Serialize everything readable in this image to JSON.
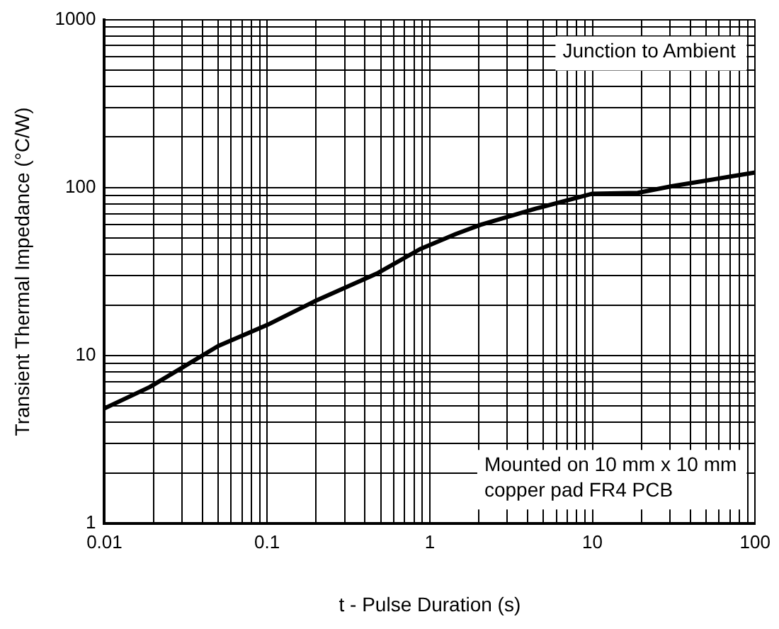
{
  "chart_data": {
    "type": "line",
    "xlabel": "t - Pulse Duration (s)",
    "ylabel": "Transient Thermal Impedance (°C/W)",
    "annotations": [
      "Junction to Ambient",
      "Mounted on 10 mm x 10 mm\ncopper pad FR4 PCB"
    ],
    "log": "xy",
    "grid": true,
    "marker": "none",
    "line_style": "solid",
    "xlim": [
      0.01,
      100
    ],
    "ylim": [
      1,
      1000
    ],
    "xticks": [
      0.01,
      {
        "value": 0.02,
        "label": null
      },
      {
        "value": 0.03,
        "label": null
      },
      {
        "value": 0.04,
        "label": null
      },
      {
        "value": 0.05,
        "label": null
      },
      {
        "value": 0.06,
        "label": null
      },
      {
        "value": 0.07,
        "label": null
      },
      {
        "value": 0.08,
        "label": null
      },
      {
        "value": 0.09,
        "label": null
      },
      0.1,
      {
        "value": 0.2,
        "label": null
      },
      {
        "value": 0.3,
        "label": null
      },
      {
        "value": 0.4,
        "label": null
      },
      {
        "value": 0.5,
        "label": null
      },
      {
        "value": 0.6,
        "label": null
      },
      {
        "value": 0.7,
        "label": null
      },
      {
        "value": 0.8,
        "label": null
      },
      {
        "value": 0.9,
        "label": null
      },
      1,
      {
        "value": 2,
        "label": null
      },
      {
        "value": 3,
        "label": null
      },
      {
        "value": 4,
        "label": null
      },
      {
        "value": 5,
        "label": null
      },
      {
        "value": 6,
        "label": null
      },
      {
        "value": 7,
        "label": null
      },
      {
        "value": 8,
        "label": null
      },
      {
        "value": 9,
        "label": null
      },
      10,
      {
        "value": 20,
        "label": null
      },
      {
        "value": 30,
        "label": null
      },
      {
        "value": 40,
        "label": null
      },
      {
        "value": 50,
        "label": null
      },
      {
        "value": 60,
        "label": null
      },
      {
        "value": 70,
        "label": null
      },
      {
        "value": 80,
        "label": null
      },
      {
        "value": 90,
        "label": null
      },
      100
    ],
    "yticks": [
      1,
      {
        "value": 2,
        "label": null
      },
      {
        "value": 3,
        "label": null
      },
      {
        "value": 4,
        "label": null
      },
      {
        "value": 5,
        "label": null
      },
      {
        "value": 6,
        "label": null
      },
      {
        "value": 7,
        "label": null
      },
      {
        "value": 8,
        "label": null
      },
      {
        "value": 9,
        "label": null
      },
      10,
      {
        "value": 20,
        "label": null
      },
      {
        "value": 30,
        "label": null
      },
      {
        "value": 40,
        "label": null
      },
      {
        "value": 50,
        "label": null
      },
      {
        "value": 60,
        "label": null
      },
      {
        "value": 70,
        "label": null
      },
      {
        "value": 80,
        "label": null
      },
      {
        "value": 90,
        "label": null
      },
      100,
      {
        "value": 200,
        "label": null
      },
      {
        "value": 300,
        "label": null
      },
      {
        "value": 400,
        "label": null
      },
      {
        "value": 500,
        "label": null
      },
      {
        "value": 600,
        "label": null
      },
      {
        "value": 700,
        "label": null
      },
      {
        "value": 800,
        "label": null
      },
      {
        "value": 900,
        "label": null
      },
      1000
    ],
    "x": [
      0.01,
      0.019,
      0.05,
      0.1,
      0.195,
      0.48,
      0.87,
      1.45,
      2.05,
      4.5,
      10,
      19,
      31,
      100
    ],
    "series": [
      {
        "color": "#000000",
        "values": [
          4.85,
          6.5,
          11.4,
          15.2,
          21,
          31,
          43,
          53,
          60,
          75,
          92,
          93,
          102,
          123
        ]
      }
    ]
  }
}
